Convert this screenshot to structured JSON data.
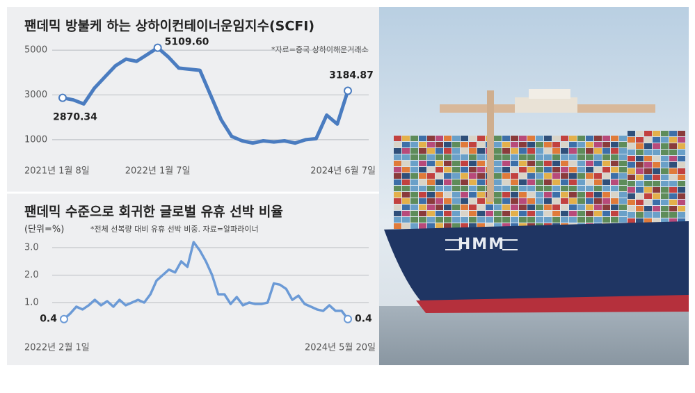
{
  "chart_data": [
    {
      "type": "line",
      "title": "팬데믹 방불케 하는 상하이컨테이너운임지수(SCFI)",
      "note": "*자료=중국 상하이해운거래소",
      "categories": [
        "2021년 1월 8일",
        null,
        null,
        null,
        null,
        null,
        null,
        null,
        null,
        "2022년 1월 7일",
        null,
        null,
        null,
        null,
        null,
        null,
        null,
        null,
        null,
        null,
        null,
        null,
        null,
        null,
        null,
        null,
        null,
        "2024년 6월 7일"
      ],
      "values": [
        2870.34,
        2780,
        2600,
        3300,
        3800,
        4300,
        4600,
        4500,
        4800,
        5109.6,
        4700,
        4200,
        4150,
        4100,
        3000,
        1900,
        1150,
        950,
        850,
        950,
        900,
        950,
        850,
        1000,
        1050,
        2100,
        1700,
        3184.87
      ],
      "value_labels": [
        "2870.34",
        null,
        null,
        null,
        null,
        null,
        null,
        null,
        null,
        "5109.60",
        null,
        null,
        null,
        null,
        null,
        null,
        null,
        null,
        null,
        null,
        null,
        null,
        null,
        null,
        null,
        null,
        null,
        "3184.87"
      ],
      "color": "#4a7cc0",
      "ylim": [
        500,
        5500
      ],
      "yticks": [
        1000,
        3000,
        5000
      ],
      "grid": true
    },
    {
      "type": "line",
      "title": "팬데믹 수준으로 회귀한 글로벌 유휴 선박 비율",
      "unit": "(단위=%)",
      "note": "*전체 선복량 대비 유휴 선박 비중. 자료=알파라이너",
      "categories": [
        "2022년 2월 1일",
        null,
        null,
        null,
        null,
        null,
        null,
        null,
        null,
        null,
        null,
        null,
        null,
        null,
        null,
        null,
        null,
        null,
        null,
        null,
        null,
        null,
        null,
        null,
        null,
        null,
        null,
        null,
        null,
        null,
        null,
        null,
        null,
        null,
        null,
        null,
        null,
        null,
        null,
        null,
        null,
        null,
        null,
        null,
        null,
        null,
        "2024년 5월 20일"
      ],
      "values": [
        0.4,
        0.6,
        0.85,
        0.75,
        0.9,
        1.1,
        0.9,
        1.05,
        0.85,
        1.1,
        0.9,
        1.0,
        1.1,
        1.0,
        1.3,
        1.8,
        2.0,
        2.2,
        2.1,
        2.5,
        2.3,
        3.2,
        2.9,
        2.5,
        2.0,
        1.3,
        1.3,
        0.95,
        1.2,
        0.9,
        1.0,
        0.95,
        0.95,
        1.0,
        1.7,
        1.65,
        1.5,
        1.1,
        1.25,
        0.95,
        0.85,
        0.75,
        0.7,
        0.9,
        0.7,
        0.7,
        0.4
      ],
      "value_labels": [
        "0.4",
        null,
        null,
        null,
        null,
        null,
        null,
        null,
        null,
        null,
        null,
        null,
        null,
        null,
        null,
        null,
        null,
        null,
        null,
        null,
        null,
        null,
        null,
        null,
        null,
        null,
        null,
        null,
        null,
        null,
        null,
        null,
        null,
        null,
        null,
        null,
        null,
        null,
        null,
        null,
        null,
        null,
        null,
        null,
        null,
        null,
        "0.4"
      ],
      "color": "#6b9ad6",
      "ylim": [
        0,
        3.5
      ],
      "yticks": [
        {
          "value": 1,
          "label": "1.0"
        },
        {
          "value": 2,
          "label": "2.0"
        },
        {
          "value": 3,
          "label": "3.0"
        }
      ],
      "grid": true
    }
  ],
  "photo": {
    "logo": "HMM"
  }
}
